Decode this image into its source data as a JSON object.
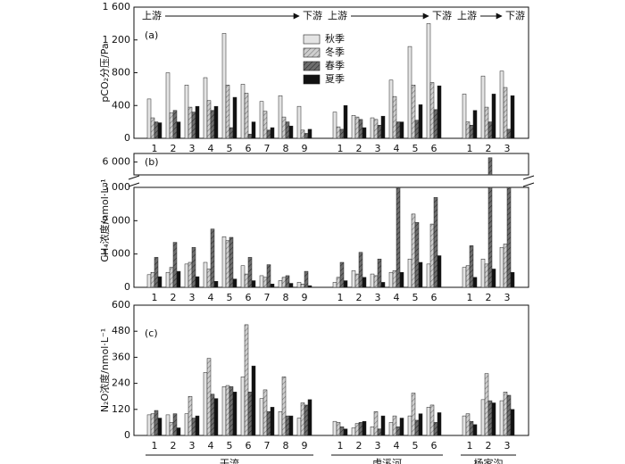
{
  "chart_data": [
    {
      "type": "bar",
      "panel_label": "(a)",
      "y_label": "pCO₂分压/Pa",
      "categories": [
        [
          "1",
          "2",
          "3",
          "4",
          "5",
          "6",
          "7",
          "8",
          "9"
        ],
        [
          "1",
          "2",
          "3",
          "4",
          "5",
          "6"
        ],
        [
          "1",
          "2",
          "3"
        ]
      ],
      "flow_labels": [
        [
          "上游",
          "下游"
        ],
        [
          "上游",
          "下游"
        ],
        [
          "上游",
          "下游"
        ]
      ],
      "legend": "upper-center",
      "ylim": [
        0,
        1600
      ],
      "yticks": [
        0,
        400,
        800,
        {
          "value": 1200,
          "label": "1 200"
        },
        {
          "value": 1600,
          "label": "1 600"
        }
      ],
      "series": [
        {
          "name": "秋季",
          "color": "#e4e4e4",
          "hatch": false,
          "values": [
            [
              480,
              800,
              650,
              740,
              1280,
              660,
              450,
              520,
              390
            ],
            [
              320,
              280,
              250,
              710,
              1120,
              1400
            ],
            [
              540,
              760,
              820
            ]
          ]
        },
        {
          "name": "冬季",
          "color": "#cfcfcf",
          "hatch": true,
          "values": [
            [
              250,
              310,
              380,
              460,
              650,
              550,
              330,
              260,
              100
            ],
            [
              140,
              260,
              230,
              510,
              650,
              680
            ],
            [
              200,
              380,
              620
            ]
          ]
        },
        {
          "name": "春季",
          "color": "#6e6e6e",
          "hatch": true,
          "values": [
            [
              200,
              340,
              320,
              340,
              130,
              50,
              100,
              200,
              60
            ],
            [
              110,
              230,
              160,
              200,
              220,
              350
            ],
            [
              160,
              200,
              110
            ]
          ]
        },
        {
          "name": "夏季",
          "color": "#111111",
          "hatch": false,
          "values": [
            [
              190,
              200,
              390,
              390,
              500,
              200,
              130,
              150,
              110
            ],
            [
              400,
              130,
              270,
              200,
              410,
              640
            ],
            [
              340,
              540,
              520
            ]
          ]
        }
      ]
    },
    {
      "type": "bar",
      "panel_label": "(b)",
      "y_label": "CH₄浓度/nmol·L⁻¹",
      "categories": [
        [
          "1",
          "2",
          "3",
          "4",
          "5",
          "6",
          "7",
          "8",
          "9"
        ],
        [
          "1",
          "2",
          "3",
          "4",
          "5",
          "6"
        ],
        [
          "1",
          "2",
          "3"
        ]
      ],
      "ylim": [
        0,
        3000
      ],
      "yticks": [
        0,
        {
          "value": 1000,
          "label": "1 000"
        },
        {
          "value": 2000,
          "label": "2 000"
        },
        {
          "value": 3000,
          "label": "3 000"
        }
      ],
      "break_ylim": [
        5400,
        6400
      ],
      "break_yticks": [
        {
          "value": 6000,
          "label": "6 000"
        }
      ],
      "series": [
        {
          "name": "秋季",
          "color": "#e4e4e4",
          "hatch": false,
          "values": [
            [
              380,
              450,
              700,
              750,
              1520,
              650,
              350,
              200,
              150
            ],
            [
              150,
              500,
              400,
              450,
              850,
              700
            ],
            [
              600,
              850,
              1200
            ]
          ]
        },
        {
          "name": "冬季",
          "color": "#cfcfcf",
          "hatch": true,
          "values": [
            [
              450,
              600,
              750,
              550,
              1400,
              400,
              300,
              300,
              100
            ],
            [
              300,
              400,
              350,
              500,
              2200,
              1900
            ],
            [
              650,
              700,
              1300
            ]
          ]
        },
        {
          "name": "春季",
          "color": "#6e6e6e",
          "hatch": true,
          "values": [
            [
              900,
              1350,
              1200,
              1750,
              1500,
              900,
              680,
              350,
              480
            ],
            [
              750,
              1050,
              850,
              3000,
              1950,
              2700
            ],
            [
              1250,
              6200,
              3000
            ]
          ]
        },
        {
          "name": "夏季",
          "color": "#111111",
          "hatch": false,
          "values": [
            [
              320,
              480,
              320,
              180,
              250,
              200,
              100,
              120,
              50
            ],
            [
              200,
              300,
              150,
              450,
              750,
              950
            ],
            [
              300,
              550,
              450
            ]
          ]
        }
      ]
    },
    {
      "type": "bar",
      "panel_label": "(c)",
      "y_label": "N₂O浓度/nmol·L⁻¹",
      "categories": [
        [
          "1",
          "2",
          "3",
          "4",
          "5",
          "6",
          "7",
          "8",
          "9"
        ],
        [
          "1",
          "2",
          "3",
          "4",
          "5",
          "6"
        ],
        [
          "1",
          "2",
          "3"
        ]
      ],
      "group_labels": [
        "干流",
        "虎溪河",
        "杨家沟"
      ],
      "ylim": [
        0,
        600
      ],
      "yticks": [
        0,
        120,
        240,
        360,
        480,
        600
      ],
      "series": [
        {
          "name": "秋季",
          "color": "#e4e4e4",
          "hatch": false,
          "values": [
            [
              95,
              95,
              100,
              290,
              225,
              270,
              170,
              110,
              80
            ],
            [
              65,
              35,
              40,
              60,
              90,
              130
            ],
            [
              90,
              165,
              160
            ]
          ]
        },
        {
          "name": "冬季",
          "color": "#cfcfcf",
          "hatch": true,
          "values": [
            [
              100,
              60,
              180,
              355,
              230,
              510,
              210,
              270,
              150
            ],
            [
              60,
              55,
              110,
              90,
              195,
              140
            ],
            [
              100,
              285,
              200
            ]
          ]
        },
        {
          "name": "春季",
          "color": "#6e6e6e",
          "hatch": true,
          "values": [
            [
              115,
              100,
              80,
              190,
              225,
              200,
              110,
              90,
              140
            ],
            [
              40,
              60,
              30,
              40,
              70,
              60
            ],
            [
              65,
              160,
              185
            ]
          ]
        },
        {
          "name": "夏季",
          "color": "#111111",
          "hatch": false,
          "values": [
            [
              80,
              35,
              90,
              170,
              200,
              320,
              130,
              90,
              165
            ],
            [
              30,
              65,
              90,
              80,
              100,
              105
            ],
            [
              50,
              150,
              120
            ]
          ]
        }
      ]
    }
  ]
}
